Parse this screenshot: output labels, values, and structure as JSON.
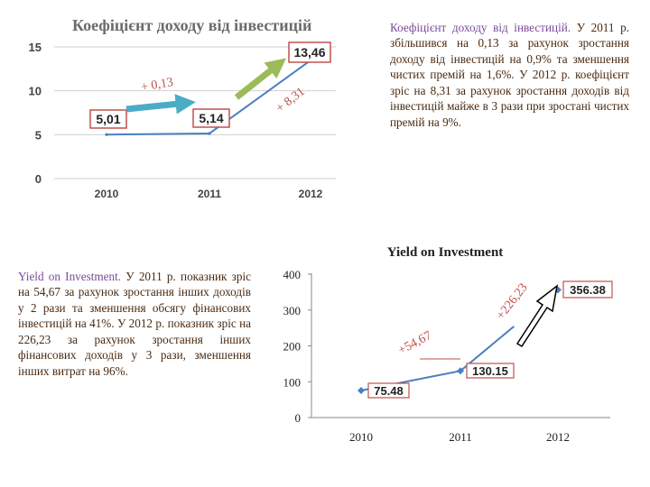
{
  "chart_data": [
    {
      "type": "line",
      "title": "Коефіцієнт доходу від інвестицій",
      "categories": [
        "2010",
        "2011",
        "2012"
      ],
      "values": [
        5.01,
        5.14,
        13.46
      ],
      "value_labels": [
        "5,01",
        "5,14",
        "13,46"
      ],
      "yticks": [
        "0",
        "5",
        "10",
        "15"
      ],
      "ylim": [
        0,
        15
      ],
      "grid": true,
      "annotations": [
        "+ 0,13",
        "+ 8,31"
      ],
      "colors": {
        "line": "#4a7fc1",
        "label_border": "#c0504d",
        "arrow1": "#4bacc6",
        "arrow2": "#9bbb59"
      }
    },
    {
      "type": "line",
      "title": "Yield on Investment",
      "categories": [
        "2010",
        "2011",
        "2012"
      ],
      "values": [
        75.48,
        130.15,
        356.38
      ],
      "value_labels": [
        "75.48",
        "130.15",
        "356.38"
      ],
      "yticks": [
        "0",
        "100",
        "200",
        "300",
        "400"
      ],
      "ylim": [
        0,
        400
      ],
      "grid": false,
      "annotations": [
        "+54,67",
        "+226,23"
      ],
      "colors": {
        "line": "#4a7fc1",
        "label_border": "#c0504d",
        "arrow": "#000000"
      }
    }
  ],
  "text": {
    "para1_lead": "Коефіцієнт доходу від інвестицій.",
    "para1_body": " У 2011 р. збільшився на 0,13 за рахунок зростання доходу від інвестицій на 0,9% та зменшення чистих премій на 1,6%. У 2012 р. коефіцієнт зріс на 8,31 за рахунок зростання доходів від інвестицій майже в 3 рази при зростані чистих премій на 9%.",
    "para2_lead": "Yield on Investment.",
    "para2_body": " У 2011 р. показник зріс на 54,67 за рахунок зростання інших доходів у 2 рази та зменшення обсягу фінансових інвестицій на 41%. У 2012 р. показник зріс на 226,23 за рахунок зростання інших фінансових доходів у 3 рази, зменшення інших витрат на 96%."
  }
}
